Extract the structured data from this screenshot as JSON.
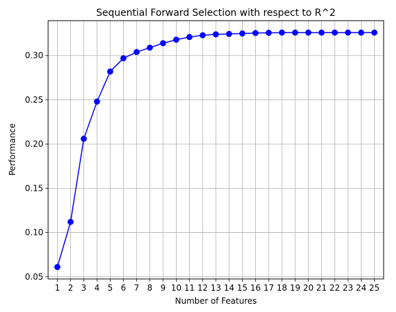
{
  "chart_data": {
    "type": "line",
    "title": "Sequential Forward Selection with respect to R^2",
    "xlabel": "Number of Features",
    "ylabel": "Performance",
    "x": [
      1,
      2,
      3,
      4,
      5,
      6,
      7,
      8,
      9,
      10,
      11,
      12,
      13,
      14,
      15,
      16,
      17,
      18,
      19,
      20,
      21,
      22,
      23,
      24,
      25
    ],
    "series": [
      {
        "values": [
          0.061,
          0.112,
          0.206,
          0.248,
          0.282,
          0.297,
          0.304,
          0.309,
          0.314,
          0.318,
          0.321,
          0.323,
          0.324,
          0.3245,
          0.325,
          0.3255,
          0.3258,
          0.326,
          0.326,
          0.326,
          0.326,
          0.326,
          0.326,
          0.326,
          0.326
        ],
        "color": "#0000ff",
        "marker": "circle"
      }
    ],
    "xlim": [
      0.3,
      25.7
    ],
    "ylim": [
      0.0475,
      0.3395
    ],
    "yticks": [
      0.05,
      0.1,
      0.15,
      0.2,
      0.25,
      0.3
    ],
    "ytick_labels": [
      "0.05",
      "0.10",
      "0.15",
      "0.20",
      "0.25",
      "0.30"
    ],
    "xticks": [
      1,
      2,
      3,
      4,
      5,
      6,
      7,
      8,
      9,
      10,
      11,
      12,
      13,
      14,
      15,
      16,
      17,
      18,
      19,
      20,
      21,
      22,
      23,
      24,
      25
    ],
    "xtick_labels": [
      "1",
      "2",
      "3",
      "4",
      "5",
      "6",
      "7",
      "8",
      "9",
      "10",
      "11",
      "12",
      "13",
      "14",
      "15",
      "16",
      "17",
      "18",
      "19",
      "20",
      "21",
      "22",
      "23",
      "24",
      "25"
    ],
    "grid": true,
    "grid_color": "#b0b0b0",
    "axis_color": "#000000"
  }
}
